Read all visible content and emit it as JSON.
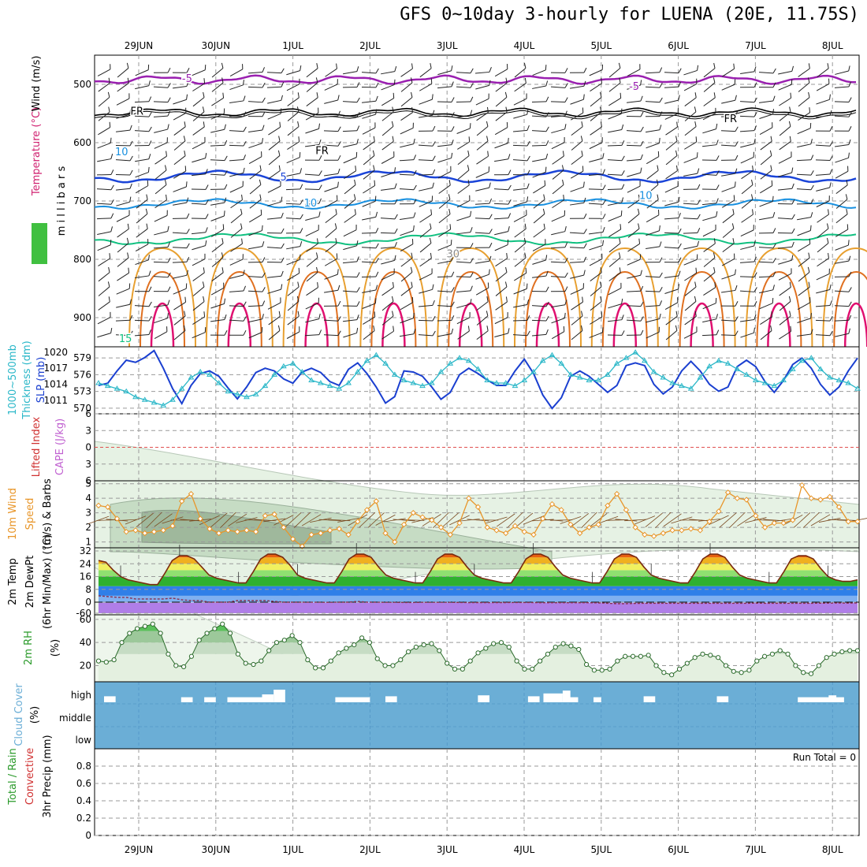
{
  "title": "GFS 0~10day 3-hourly for LUENA (20E, 11.75S)",
  "days": [
    "29JUN",
    "30JUN",
    "1JUL",
    "2JUL",
    "3JUL",
    "4JUL",
    "5JUL",
    "6JUL",
    "7JUL",
    "8JUL"
  ],
  "run_total": "Run Total = 0",
  "colors": {
    "slp": "#1a3fd0",
    "thick": "#2ab7c8",
    "wind10": "#e8962a",
    "temp": "#7a2a10",
    "rh2m": "#2a9a2a",
    "cloud": "#6baed6",
    "minus5": "#9a20b0",
    "fr": "#000000",
    "c5": "#1a44d8",
    "c10": "#1890e0",
    "c15": "#10c080",
    "c20": "#e8a030",
    "c25": "#e07020",
    "c30": "#e01070"
  },
  "chart_data": [
    {
      "type": "heatmap",
      "name": "upper",
      "ylabel_parts": [
        "RH (%)",
        "Temperature (°C)",
        "Wind (m/s)"
      ],
      "yaxis_label": "m i l l i b a r s",
      "y_ticks": [
        500,
        600,
        700,
        800,
        900
      ],
      "ylim": [
        450,
        950
      ],
      "contour_labels": [
        {
          "text": "-5",
          "day": 1.2,
          "p": 489
        },
        {
          "text": "-5",
          "day": 7.0,
          "p": 503
        },
        {
          "text": "FR",
          "day": 0.55,
          "p": 545
        },
        {
          "text": "FR",
          "day": 2.95,
          "p": 613
        },
        {
          "text": "FR",
          "day": 8.25,
          "p": 558
        },
        {
          "text": "5",
          "day": 2.45,
          "p": 658
        },
        {
          "text": "10",
          "day": 2.8,
          "p": 703
        },
        {
          "text": "10",
          "day": 7.15,
          "p": 690
        },
        {
          "text": "15",
          "day": 0.4,
          "p": 935
        },
        {
          "text": "10",
          "day": 0.35,
          "p": 615
        },
        {
          "text": "30",
          "day": 4.65,
          "p": 790
        }
      ]
    },
    {
      "type": "line",
      "name": "slp-thickness",
      "ylabel_parts": [
        "1000~500mb",
        "Thickness (dm)",
        "SLP (mb)"
      ],
      "y_ticks_left": [
        570,
        573,
        576,
        579
      ],
      "y_ticks_right": [
        1011,
        1014,
        1017,
        1020
      ],
      "ylim_left": [
        569,
        581
      ],
      "ylim_right": [
        1008.5,
        1021
      ],
      "series": [
        {
          "name": "SLP (mb)",
          "axis": "right",
          "values": [
            1013.8,
            1014.2,
            1016.5,
            1018.5,
            1018.1,
            1019.0,
            1020.3,
            1017.0,
            1013.2,
            1010.4,
            1013.8,
            1016.0,
            1016.5,
            1015.5,
            1013.3,
            1011.3,
            1013.5,
            1016.2,
            1017.0,
            1016.5,
            1015.0,
            1014.2,
            1016.3,
            1017.0,
            1016.2,
            1014.5,
            1013.8,
            1016.8,
            1018.0,
            1016.0,
            1013.5,
            1010.5,
            1011.7,
            1016.5,
            1016.3,
            1015.5,
            1013.5,
            1011.2,
            1012.5,
            1015.8,
            1017.0,
            1016.0,
            1014.8,
            1013.8,
            1013.8,
            1016.5,
            1018.7,
            1016.0,
            1012.0,
            1009.5,
            1011.5,
            1015.5,
            1016.5,
            1015.5,
            1014.0,
            1012.5,
            1013.8,
            1017.5,
            1018.0,
            1017.5,
            1014.0,
            1012.2,
            1013.5,
            1016.5,
            1018.3,
            1016.5,
            1014.0,
            1012.7,
            1013.5,
            1017.3,
            1018.5,
            1017.3,
            1014.5,
            1012.5,
            1014.7,
            1017.7,
            1018.9,
            1017.0,
            1014.0,
            1012.0,
            1013.5,
            1016.5,
            1018.9
          ]
        },
        {
          "name": "1000~500mb Thickness (dm)",
          "axis": "left",
          "values": [
            574.5,
            574.0,
            573.5,
            573.0,
            572.0,
            571.5,
            571.0,
            570.5,
            571.5,
            573.5,
            575.5,
            576.5,
            576.0,
            574.5,
            573.0,
            572.5,
            572.0,
            572.5,
            574.0,
            576.0,
            577.5,
            578.0,
            576.5,
            575.0,
            574.5,
            574.0,
            573.5,
            574.5,
            576.5,
            578.5,
            579.5,
            578.0,
            576.0,
            575.0,
            574.5,
            574.0,
            574.5,
            576.5,
            578.0,
            579.0,
            578.5,
            577.0,
            575.0,
            574.5,
            574.5,
            574.0,
            575.0,
            576.5,
            578.5,
            579.5,
            578.0,
            576.0,
            575.5,
            575.0,
            575.0,
            576.0,
            578.0,
            579.0,
            580.0,
            578.5,
            576.5,
            575.5,
            574.5,
            574.0,
            573.5,
            575.5,
            577.5,
            578.5,
            578.0,
            577.0,
            576.0,
            575.0,
            574.5,
            574.0,
            575.0,
            577.0,
            578.5,
            579.0,
            577.0,
            575.5,
            575.0,
            574.5,
            573.5
          ]
        }
      ]
    },
    {
      "type": "line",
      "name": "cape-li",
      "ylabel_parts": [
        "Lifted Index",
        "CAPE (J/kg)"
      ],
      "y_ticks": [
        -6,
        -3,
        0,
        3,
        6
      ],
      "y_tick_labels": [
        "6",
        "3",
        "0",
        "3",
        "6"
      ],
      "ylim": [
        -6,
        6
      ]
    },
    {
      "type": "line",
      "name": "wind10m",
      "ylabel_parts": [
        "10m Wind",
        "Speed",
        "(m/s) & Barbs"
      ],
      "y_ticks": [
        1,
        2,
        3,
        4,
        5
      ],
      "ylim": [
        0.6,
        5.2
      ],
      "series": [
        {
          "name": "10m Wind Speed",
          "values": [
            3.5,
            3.4,
            2.6,
            1.7,
            1.8,
            1.6,
            1.7,
            1.8,
            2.1,
            3.8,
            4.3,
            2.6,
            1.9,
            1.6,
            1.8,
            1.7,
            1.8,
            1.7,
            2.8,
            2.9,
            2.0,
            1.2,
            0.7,
            1.5,
            1.6,
            1.8,
            1.9,
            1.5,
            2.4,
            3.2,
            3.8,
            1.6,
            1.0,
            2.2,
            3.0,
            2.7,
            2.5,
            2.0,
            1.5,
            2.3,
            4.0,
            3.4,
            2.0,
            1.8,
            1.6,
            2.1,
            1.7,
            1.5,
            2.6,
            3.6,
            3.2,
            2.2,
            1.6,
            2.0,
            2.2,
            3.5,
            4.3,
            3.2,
            2.0,
            1.5,
            1.4,
            1.6,
            1.8,
            1.8,
            1.9,
            1.8,
            2.4,
            3.1,
            4.4,
            4.0,
            3.9,
            2.8,
            2.0,
            2.3,
            2.3,
            2.5,
            4.9,
            4.0,
            3.9,
            4.1,
            3.4,
            2.4,
            2.4
          ]
        }
      ]
    },
    {
      "type": "area",
      "name": "temp2m",
      "ylabel_parts": [
        "2m Temp",
        "2m DewPt",
        "(6hr Min/Max) (°C)"
      ],
      "y_ticks": [
        -60,
        0,
        8,
        16,
        24,
        32
      ],
      "ylim": [
        -60,
        34
      ],
      "series": [
        {
          "name": "2m Temp",
          "values": [
            26,
            25,
            20,
            16,
            14,
            13,
            12,
            11,
            11,
            18,
            26,
            29,
            29,
            27,
            22,
            17,
            15,
            14,
            13,
            12,
            12,
            19,
            27,
            30,
            30,
            28,
            23,
            17,
            15,
            14,
            13,
            12,
            12,
            19,
            27,
            30,
            30,
            28,
            22,
            17,
            15,
            14,
            13,
            12,
            12,
            19,
            27,
            30,
            30,
            28,
            22,
            17,
            15,
            14,
            13,
            12,
            12,
            19,
            27,
            30,
            30,
            28,
            22,
            17,
            15,
            14,
            13,
            12,
            12,
            19,
            27,
            30,
            30,
            28,
            22,
            17,
            15,
            14,
            13,
            12,
            12,
            19,
            27,
            30,
            30,
            28,
            22,
            17,
            15,
            14,
            13,
            12,
            12,
            19,
            27,
            29,
            29,
            27,
            21,
            16,
            14,
            13,
            13,
            14
          ]
        },
        {
          "name": "2m DewPt",
          "values": [
            4,
            3.5,
            3,
            3,
            2,
            2,
            2,
            2,
            2.5,
            1.5,
            1,
            1,
            0,
            0,
            0,
            1,
            1,
            1,
            1,
            0.5,
            0,
            0,
            0,
            -0.5,
            -0.5,
            -1,
            0,
            0,
            0.5,
            0,
            0,
            -1,
            -1,
            -1.5,
            -1.5,
            -1,
            -1,
            -1,
            -1,
            -1.5,
            -2,
            -2,
            -2.5,
            -2,
            -2,
            -1.5,
            -1.5,
            -2,
            -3,
            -3,
            -3,
            -3,
            -3,
            -3,
            -4,
            -6,
            -8,
            -8,
            -7,
            -6,
            -6,
            -6,
            -6,
            -6,
            -6,
            -6,
            -6,
            -6,
            -6,
            -6,
            -6,
            -5,
            -6,
            -6,
            -6,
            -6,
            -6,
            -6,
            -5.5,
            -5,
            -4.5,
            -5,
            -4
          ]
        }
      ]
    },
    {
      "type": "area",
      "name": "rh2m",
      "ylabel_parts": [
        "2m RH",
        "(%)"
      ],
      "y_ticks": [
        20,
        40,
        60
      ],
      "ylim": [
        6,
        64
      ],
      "series": [
        {
          "name": "2m RH",
          "values": [
            24,
            23,
            25,
            40,
            48,
            52,
            54,
            56,
            48,
            30,
            20,
            19,
            28,
            42,
            48,
            52,
            56,
            48,
            30,
            22,
            21,
            24,
            33,
            40,
            42,
            46,
            40,
            25,
            18,
            18,
            24,
            31,
            35,
            38,
            44,
            40,
            26,
            20,
            20,
            25,
            32,
            36,
            38,
            39,
            33,
            22,
            17,
            17,
            24,
            31,
            35,
            39,
            40,
            36,
            24,
            17,
            17,
            24,
            30,
            36,
            39,
            37,
            34,
            21,
            16,
            16,
            17,
            24,
            28,
            28,
            28,
            29,
            20,
            14,
            12,
            17,
            22,
            27,
            30,
            29,
            27,
            20,
            15,
            14,
            16,
            24,
            28,
            30,
            33,
            30,
            20,
            14,
            13,
            20,
            27,
            30,
            32,
            33,
            33
          ]
        }
      ]
    },
    {
      "type": "bar",
      "name": "cloud",
      "ylabel_parts": [
        "Cloud Cover",
        "(%)"
      ],
      "levels": [
        "high",
        "middle",
        "low"
      ],
      "high_cloud_gaps": [
        {
          "start": 0.0,
          "end": 0.15,
          "frac": 0.3
        },
        {
          "start": 1.0,
          "end": 1.15,
          "frac": 0.2
        },
        {
          "start": 1.3,
          "end": 1.45,
          "frac": 0.2
        },
        {
          "start": 1.6,
          "end": 2.1,
          "frac": 0.2
        },
        {
          "start": 2.05,
          "end": 2.2,
          "frac": 0.5
        },
        {
          "start": 2.2,
          "end": 2.35,
          "frac": 1.0
        },
        {
          "start": 3.0,
          "end": 3.45,
          "frac": 0.2
        },
        {
          "start": 3.65,
          "end": 3.8,
          "frac": 0.3
        },
        {
          "start": 4.85,
          "end": 5.0,
          "frac": 0.4
        },
        {
          "start": 5.5,
          "end": 5.65,
          "frac": 0.3
        },
        {
          "start": 5.7,
          "end": 5.95,
          "frac": 0.6
        },
        {
          "start": 5.95,
          "end": 6.05,
          "frac": 0.9
        },
        {
          "start": 6.0,
          "end": 6.15,
          "frac": 0.2
        },
        {
          "start": 6.35,
          "end": 6.45,
          "frac": 0.2
        },
        {
          "start": 7.0,
          "end": 7.15,
          "frac": 0.3
        },
        {
          "start": 7.95,
          "end": 8.1,
          "frac": 0.3
        },
        {
          "start": 9.0,
          "end": 9.6,
          "frac": 0.2
        },
        {
          "start": 9.4,
          "end": 9.5,
          "frac": 0.4
        }
      ]
    },
    {
      "type": "bar",
      "name": "precip",
      "ylabel_parts": [
        "Total / Rain",
        "Convective",
        "3hr Precip (mm)"
      ],
      "y_ticks": [
        0,
        0.2,
        0.4,
        0.6,
        0.8
      ],
      "ylim": [
        0,
        1.0
      ],
      "values": []
    }
  ]
}
